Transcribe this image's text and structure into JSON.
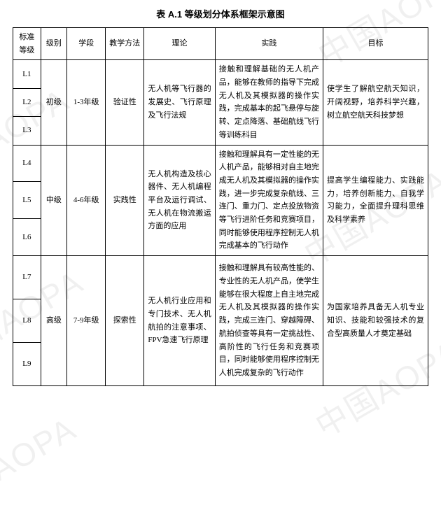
{
  "title": "表 A.1  等级划分体系框架示意图",
  "watermark_text": "中国AOPA",
  "style": {
    "font_family": "SimSun",
    "background_color": "#ffffff",
    "border_color": "#000000",
    "watermark_color": "rgba(0,0,0,0.06)",
    "title_fontsize_pt": 10,
    "cell_fontsize_pt": 8.5
  },
  "headers": {
    "h0": "标准等级",
    "h1": "级别",
    "h2": "学段",
    "h3": "教学方法",
    "h4": "理论",
    "h5": "实践",
    "h6": "目标"
  },
  "levels": {
    "L1": "L1",
    "L2": "L2",
    "L3": "L3",
    "L4": "L4",
    "L5": "L5",
    "L6": "L6",
    "L7": "L7",
    "L8": "L8",
    "L9": "L9"
  },
  "groups": {
    "g1": {
      "level": "初级",
      "stage": "1-3年级",
      "method": "验证性",
      "theory": "无人机等飞行器的发展史、飞行原理及飞行法规",
      "practice": "接触和理解基础的无人机产品，能够在教师的指导下完成无人机及其模拟器的操作实践，完成基本的起飞悬停与旋转、定点降落、基础航线飞行等训练科目",
      "goal": "使学生了解航空航天知识，开阔视野，培养科学兴趣，树立航空航天科技梦想"
    },
    "g2": {
      "level": "中级",
      "stage": "4-6年级",
      "method": "实践性",
      "theory": "无人机构造及核心器件、无人机编程平台及运行调试、无人机在物流搬运方面的应用",
      "practice": "接触和理解具有一定性能的无人机产品，能够相对自主地完成无人机及其模拟器的操作实践，进一步完成复杂航线、三连门、重力门、定点投放物资等飞行进阶任务和竞赛项目，同时能够使用程序控制无人机完成基本的飞行动作",
      "goal": "提高学生编程能力、实践能力，培养创新能力、自我学习能力，全面提升理科思维及科学素养"
    },
    "g3": {
      "level": "高级",
      "stage": "7-9年级",
      "method": "探索性",
      "theory": "无人机行业应用和专门技术、无人机航拍的注意事项、FPV急速飞行原理",
      "practice": "接触和理解具有较高性能的、专业性的无人机产品，使学生能够在很大程度上自主地完成无人机及其模拟器的操作实践，完成三连门、穿越障碍、航拍侦查等具有一定挑战性、高阶性的飞行任务和竞赛项目，同时能够使用程序控制无人机完成复杂的飞行动作",
      "goal": "为国家培养具备无人机专业知识、技能和较强技术的复合型高质量人才奠定基础"
    }
  }
}
